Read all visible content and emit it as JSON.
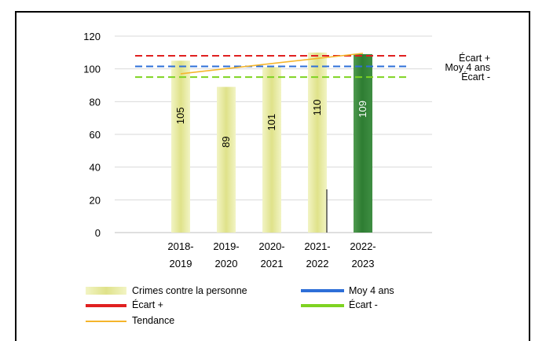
{
  "title": "",
  "chart_data": {
    "type": "bar",
    "categories": [
      [
        "2018-",
        "2019"
      ],
      [
        "2019-",
        "2020"
      ],
      [
        "2020-",
        "2021"
      ],
      [
        "2021-",
        "2022"
      ],
      [
        "2022-",
        "2023"
      ]
    ],
    "series": [
      {
        "name": "Crimes contre la personne",
        "values": [
          105,
          89,
          101,
          110,
          109
        ]
      }
    ],
    "reference_lines": [
      {
        "name": "Écart +",
        "value": 108,
        "color": "#e02020"
      },
      {
        "name": "Moy 4 ans",
        "value": 101.5,
        "color": "#2e6fd8"
      },
      {
        "name": "Écart -",
        "value": 95,
        "color": "#7ed321"
      }
    ],
    "trend": {
      "name": "Tendance",
      "from": 97,
      "to": 109.5,
      "color": "#f5b52c"
    },
    "right_labels": [
      "Écart +",
      "Moy 4 ans",
      "Écart -"
    ],
    "ylim": [
      0,
      120
    ],
    "yticks": [
      0,
      20,
      40,
      60,
      80,
      100,
      120
    ],
    "grid": true,
    "bar_colors": [
      "#e8eb9c",
      "#e8eb9c",
      "#e8eb9c",
      "#e8eb9c",
      "#2f7d32"
    ],
    "legend": [
      "Crimes contre la personne",
      "Moy 4 ans",
      "Écart +",
      "Écart -",
      "Tendance"
    ],
    "legend_position": "bottom"
  }
}
